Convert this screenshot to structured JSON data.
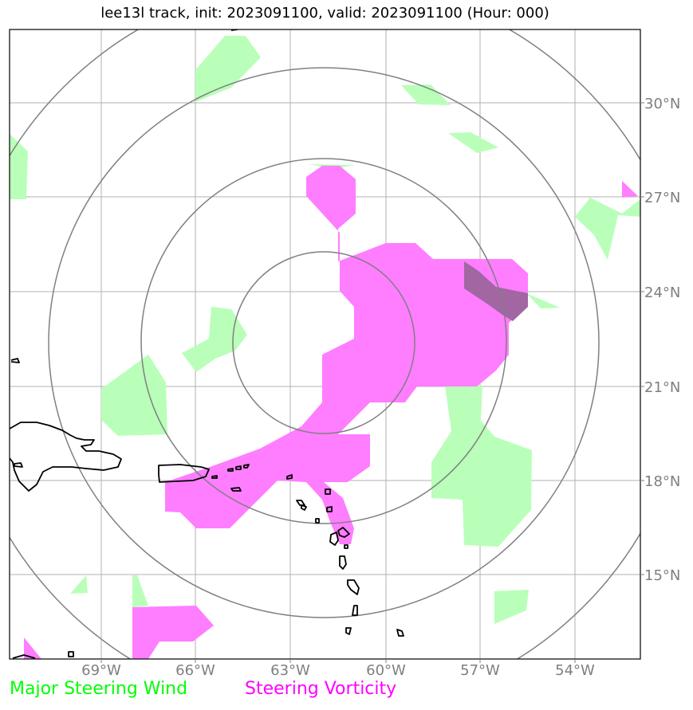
{
  "title": "lee13l track, init: 2023091100, valid: 2023091100 (Hour: 000)",
  "map": {
    "lon_ticks": [
      "69°W",
      "66°W",
      "63°W",
      "60°W",
      "57°W",
      "54°W"
    ],
    "lat_ticks": [
      "30°N",
      "27°N",
      "24°N",
      "21°N",
      "18°N",
      "15°N"
    ],
    "lon_values": [
      -69,
      -66,
      -63,
      -60,
      -57,
      -54
    ],
    "lat_values": [
      30,
      27,
      24,
      21,
      18,
      15
    ],
    "range_ring_count": 4,
    "grid": true,
    "colors": {
      "wind": "#b9ffb9",
      "vorticity": "#ff7dff",
      "overlap": "#a266a2",
      "ring": "#808080",
      "grid": "#b0b0b0",
      "coast": "#000000"
    }
  },
  "legend": {
    "wind_label": "Major Steering Wind",
    "wind_color": "#00ff00",
    "vorticity_label": "Steering Vorticity",
    "vorticity_color": "#ff00ff"
  }
}
